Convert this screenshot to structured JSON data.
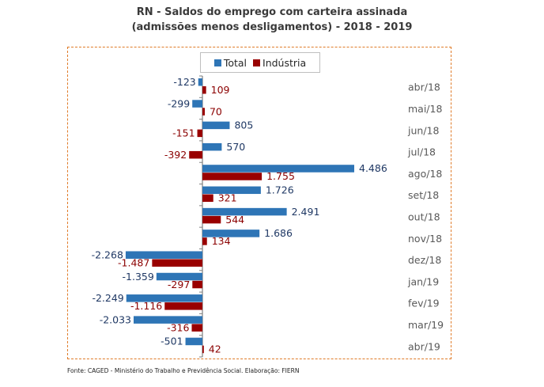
{
  "chart_data": {
    "type": "bar",
    "orientation": "horizontal",
    "title": "RN - Saldos do emprego com carteira assinada",
    "subtitle": "(admissões menos desligamentos) - 2018 - 2019",
    "xlabel": "",
    "ylabel": "",
    "categories": [
      "abr/18",
      "mai/18",
      "jun/18",
      "jul/18",
      "ago/18",
      "set/18",
      "out/18",
      "nov/18",
      "dez/18",
      "jan/19",
      "fev/19",
      "mar/19",
      "abr/19"
    ],
    "series": [
      {
        "name": "Total",
        "color": "#2E75B6",
        "label_color": "#1F3864",
        "values": [
          -123,
          -299,
          805,
          570,
          4486,
          1726,
          2491,
          1686,
          -2268,
          -1359,
          -2249,
          -2033,
          -501
        ],
        "labels": [
          "-123",
          "-299",
          "805",
          "570",
          "4.486",
          "1.726",
          "2.491",
          "1.686",
          "-2.268",
          "-1.359",
          "-2.249",
          "-2.033",
          "-501"
        ]
      },
      {
        "name": "Indústria",
        "color": "#990000",
        "label_color": "#8B0000",
        "values": [
          109,
          70,
          -151,
          -392,
          1755,
          321,
          544,
          134,
          -1487,
          -297,
          -1116,
          -316,
          42
        ],
        "labels": [
          "109",
          "70",
          "-151",
          "-392",
          "1.755",
          "321",
          "544",
          "134",
          "-1.487",
          "-297",
          "-1.116",
          "-316",
          "42"
        ]
      }
    ],
    "legend_position": "top-center",
    "grid": false,
    "category_label_position": "right"
  },
  "source_note": "Fonte: CAGED - Ministério do Trabalho e Previdência Social. Elaboração: FIERN",
  "colors": {
    "border": "#E07B28",
    "axis": "#7f7f7f",
    "category_text": "#595959"
  }
}
